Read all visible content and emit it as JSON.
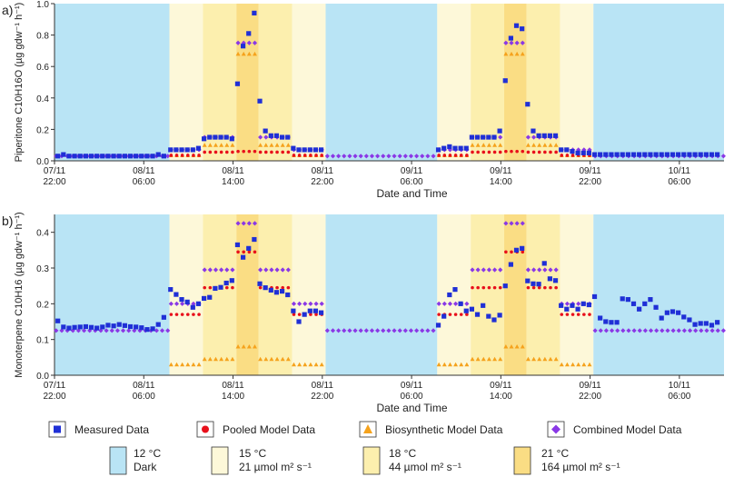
{
  "legend": {
    "measured": "Measured Data",
    "pooled": "Pooled Model Data",
    "biosynthetic": "Biosynthetic Model Data",
    "combined": "Combined Model Data",
    "conditions": [
      {
        "temp": "12 °C",
        "light": "Dark",
        "color": "#b9e4f5"
      },
      {
        "temp": "15 °C",
        "light": "21 µmol m² s⁻¹",
        "color": "#fdf8d9"
      },
      {
        "temp": "18 °C",
        "light": "44 µmol m² s⁻¹",
        "color": "#fcefae"
      },
      {
        "temp": "21 °C",
        "light": "164 µmol m² s⁻¹",
        "color": "#fadd84"
      }
    ]
  },
  "colors": {
    "measured": "#1f2fd6",
    "pooled": "#e8101b",
    "biosynthetic": "#f5a21c",
    "combined": "#8a38e6",
    "axis": "#333333"
  },
  "chart_data": [
    {
      "panel": "a)",
      "type": "scatter",
      "ylabel": "Piperitone  C10H16O  (µg gdw⁻¹ h⁻¹)",
      "xlabel": "Date and Time",
      "xlim": [
        0,
        60
      ],
      "ylim": [
        0,
        1.0
      ],
      "yticks": [
        "0.0",
        "0.2",
        "0.4",
        "0.6",
        "0.8",
        "1.0"
      ],
      "xticks": [
        {
          "x": 0,
          "l1": "07/11",
          "l2": "22:00"
        },
        {
          "x": 8,
          "l1": "08/11",
          "l2": "06:00"
        },
        {
          "x": 16,
          "l1": "08/11",
          "l2": "14:00"
        },
        {
          "x": 24,
          "l1": "08/11",
          "l2": "22:00"
        },
        {
          "x": 32,
          "l1": "09/11",
          "l2": "06:00"
        },
        {
          "x": 40,
          "l1": "09/11",
          "l2": "14:00"
        },
        {
          "x": 48,
          "l1": "09/11",
          "l2": "22:00"
        },
        {
          "x": 56,
          "l1": "10/11",
          "l2": "06:00"
        }
      ],
      "bands": [
        {
          "from": 0,
          "to": 10.3,
          "cond": 0
        },
        {
          "from": 10.3,
          "to": 13.3,
          "cond": 1
        },
        {
          "from": 13.3,
          "to": 16.3,
          "cond": 2
        },
        {
          "from": 16.3,
          "to": 18.3,
          "cond": 3
        },
        {
          "from": 18.3,
          "to": 21.3,
          "cond": 2
        },
        {
          "from": 21.3,
          "to": 24.3,
          "cond": 1
        },
        {
          "from": 24.3,
          "to": 34.3,
          "cond": 0
        },
        {
          "from": 34.3,
          "to": 37.3,
          "cond": 1
        },
        {
          "from": 37.3,
          "to": 40.3,
          "cond": 2
        },
        {
          "from": 40.3,
          "to": 42.3,
          "cond": 3
        },
        {
          "from": 42.3,
          "to": 45.3,
          "cond": 2
        },
        {
          "from": 45.3,
          "to": 48.3,
          "cond": 1
        },
        {
          "from": 48.3,
          "to": 60,
          "cond": 0
        }
      ],
      "measured": {
        "x": [
          0.3,
          0.8,
          1.3,
          1.8,
          2.3,
          2.8,
          3.3,
          3.8,
          4.3,
          4.8,
          5.3,
          5.8,
          6.3,
          6.8,
          7.3,
          7.8,
          8.3,
          8.8,
          9.3,
          9.8,
          10.4,
          10.9,
          11.4,
          11.9,
          12.4,
          12.9,
          13.4,
          13.9,
          14.4,
          14.9,
          15.4,
          15.9,
          16.4,
          16.9,
          17.4,
          17.9,
          18.4,
          18.9,
          19.4,
          19.9,
          20.4,
          20.9,
          21.4,
          21.9,
          22.4,
          22.9,
          23.4,
          23.9,
          34.4,
          34.9,
          35.4,
          35.9,
          36.4,
          36.9,
          37.4,
          37.9,
          38.4,
          38.9,
          39.4,
          39.9,
          40.4,
          40.9,
          41.4,
          41.9,
          42.4,
          42.9,
          43.4,
          43.9,
          44.4,
          44.9,
          45.4,
          45.9,
          46.4,
          46.9,
          47.4,
          47.9,
          48.4,
          48.9,
          49.4,
          49.9,
          50.4,
          50.9,
          51.4,
          51.9,
          52.4,
          52.9,
          53.4,
          53.9,
          54.4,
          54.9,
          55.4,
          55.9,
          56.4,
          56.9,
          57.4,
          57.9,
          58.4,
          58.9,
          59.4
        ],
        "y": [
          0.03,
          0.04,
          0.03,
          0.03,
          0.03,
          0.03,
          0.03,
          0.03,
          0.03,
          0.03,
          0.03,
          0.03,
          0.03,
          0.03,
          0.03,
          0.03,
          0.03,
          0.03,
          0.04,
          0.03,
          0.07,
          0.07,
          0.07,
          0.07,
          0.07,
          0.08,
          0.14,
          0.15,
          0.15,
          0.15,
          0.15,
          0.14,
          0.49,
          0.73,
          0.81,
          0.94,
          0.38,
          0.19,
          0.16,
          0.16,
          0.15,
          0.15,
          0.08,
          0.07,
          0.07,
          0.07,
          0.07,
          0.07,
          0.07,
          0.08,
          0.09,
          0.08,
          0.08,
          0.08,
          0.15,
          0.15,
          0.15,
          0.15,
          0.15,
          0.19,
          0.51,
          0.78,
          0.86,
          0.84,
          0.36,
          0.19,
          0.16,
          0.16,
          0.16,
          0.16,
          0.07,
          0.07,
          0.06,
          0.05,
          0.05,
          0.05,
          0.04,
          0.04,
          0.04,
          0.04,
          0.04,
          0.04,
          0.04,
          0.04,
          0.04,
          0.04,
          0.04,
          0.04,
          0.04,
          0.04,
          0.04,
          0.04,
          0.04,
          0.04,
          0.04,
          0.04,
          0.04,
          0.04,
          0.04
        ]
      },
      "pooled": {
        "segments": [
          {
            "from": 10.3,
            "to": 13.3,
            "y": 0.035
          },
          {
            "from": 13.3,
            "to": 16.3,
            "y": 0.055
          },
          {
            "from": 16.3,
            "to": 18.3,
            "y": 0.06
          },
          {
            "from": 18.3,
            "to": 21.3,
            "y": 0.055
          },
          {
            "from": 21.3,
            "to": 24.3,
            "y": 0.035
          },
          {
            "from": 34.3,
            "to": 37.3,
            "y": 0.035
          },
          {
            "from": 37.3,
            "to": 40.3,
            "y": 0.055
          },
          {
            "from": 40.3,
            "to": 42.3,
            "y": 0.06
          },
          {
            "from": 42.3,
            "to": 45.3,
            "y": 0.055
          },
          {
            "from": 45.3,
            "to": 48.3,
            "y": 0.035
          }
        ]
      },
      "biosynthetic": {
        "segments": [
          {
            "from": 10.3,
            "to": 13.3,
            "y": 0.035
          },
          {
            "from": 13.3,
            "to": 16.3,
            "y": 0.1
          },
          {
            "from": 16.3,
            "to": 18.3,
            "y": 0.68
          },
          {
            "from": 18.3,
            "to": 21.3,
            "y": 0.1
          },
          {
            "from": 21.3,
            "to": 24.3,
            "y": 0.035
          },
          {
            "from": 34.3,
            "to": 37.3,
            "y": 0.035
          },
          {
            "from": 37.3,
            "to": 40.3,
            "y": 0.1
          },
          {
            "from": 40.3,
            "to": 42.3,
            "y": 0.68
          },
          {
            "from": 42.3,
            "to": 45.3,
            "y": 0.1
          },
          {
            "from": 45.3,
            "to": 48.3,
            "y": 0.035
          }
        ]
      },
      "combined": {
        "segments": [
          {
            "from": 0,
            "to": 10.3,
            "y": 0.03
          },
          {
            "from": 10.3,
            "to": 13.3,
            "y": 0.07
          },
          {
            "from": 13.3,
            "to": 16.3,
            "y": 0.15
          },
          {
            "from": 16.3,
            "to": 18.3,
            "y": 0.75
          },
          {
            "from": 18.3,
            "to": 21.3,
            "y": 0.15
          },
          {
            "from": 21.3,
            "to": 24.3,
            "y": 0.07
          },
          {
            "from": 24.3,
            "to": 34.3,
            "y": 0.03
          },
          {
            "from": 34.3,
            "to": 37.3,
            "y": 0.07
          },
          {
            "from": 37.3,
            "to": 40.3,
            "y": 0.15
          },
          {
            "from": 40.3,
            "to": 42.3,
            "y": 0.75
          },
          {
            "from": 42.3,
            "to": 45.3,
            "y": 0.15
          },
          {
            "from": 45.3,
            "to": 48.3,
            "y": 0.07
          },
          {
            "from": 48.3,
            "to": 60,
            "y": 0.03
          }
        ]
      }
    },
    {
      "panel": "b)",
      "type": "scatter",
      "ylabel": "Monoterpene  C10H16  (µg gdw⁻¹ h⁻¹)",
      "xlabel": "Date and Time",
      "xlim": [
        0,
        60
      ],
      "ylim": [
        0,
        0.45
      ],
      "yticks": [
        "0.0",
        "0.1",
        "0.2",
        "0.3",
        "0.4"
      ],
      "xticks": [
        {
          "x": 0,
          "l1": "07/11",
          "l2": "22:00"
        },
        {
          "x": 8,
          "l1": "08/11",
          "l2": "06:00"
        },
        {
          "x": 16,
          "l1": "08/11",
          "l2": "14:00"
        },
        {
          "x": 24,
          "l1": "08/11",
          "l2": "22:00"
        },
        {
          "x": 32,
          "l1": "09/11",
          "l2": "06:00"
        },
        {
          "x": 40,
          "l1": "09/11",
          "l2": "14:00"
        },
        {
          "x": 48,
          "l1": "09/11",
          "l2": "22:00"
        },
        {
          "x": 56,
          "l1": "10/11",
          "l2": "06:00"
        }
      ],
      "bands": [
        {
          "from": 0,
          "to": 10.3,
          "cond": 0
        },
        {
          "from": 10.3,
          "to": 13.3,
          "cond": 1
        },
        {
          "from": 13.3,
          "to": 16.3,
          "cond": 2
        },
        {
          "from": 16.3,
          "to": 18.3,
          "cond": 3
        },
        {
          "from": 18.3,
          "to": 21.3,
          "cond": 2
        },
        {
          "from": 21.3,
          "to": 24.3,
          "cond": 1
        },
        {
          "from": 24.3,
          "to": 34.3,
          "cond": 0
        },
        {
          "from": 34.3,
          "to": 37.3,
          "cond": 1
        },
        {
          "from": 37.3,
          "to": 40.3,
          "cond": 2
        },
        {
          "from": 40.3,
          "to": 42.3,
          "cond": 3
        },
        {
          "from": 42.3,
          "to": 45.3,
          "cond": 2
        },
        {
          "from": 45.3,
          "to": 48.3,
          "cond": 1
        },
        {
          "from": 48.3,
          "to": 60,
          "cond": 0
        }
      ],
      "measured": {
        "x": [
          0.3,
          0.8,
          1.3,
          1.8,
          2.3,
          2.8,
          3.3,
          3.8,
          4.3,
          4.8,
          5.3,
          5.8,
          6.3,
          6.8,
          7.3,
          7.8,
          8.3,
          8.8,
          9.3,
          9.8,
          10.4,
          10.9,
          11.4,
          11.9,
          12.4,
          12.9,
          13.4,
          13.9,
          14.4,
          14.9,
          15.4,
          15.9,
          16.4,
          16.9,
          17.4,
          17.9,
          18.4,
          18.9,
          19.4,
          19.9,
          20.4,
          20.9,
          21.4,
          21.9,
          22.4,
          22.9,
          23.4,
          23.9,
          34.4,
          34.9,
          35.4,
          35.9,
          36.4,
          36.9,
          37.4,
          37.9,
          38.4,
          38.9,
          39.4,
          39.9,
          40.4,
          40.9,
          41.4,
          41.9,
          42.4,
          42.9,
          43.4,
          43.9,
          44.4,
          44.9,
          45.4,
          45.9,
          46.4,
          46.9,
          47.4,
          47.9,
          48.4,
          48.9,
          49.4,
          49.9,
          50.4,
          50.9,
          51.4,
          51.9,
          52.4,
          52.9,
          53.4,
          53.9,
          54.4,
          54.9,
          55.4,
          55.9,
          56.4,
          56.9,
          57.4,
          57.9,
          58.4,
          58.9,
          59.4
        ],
        "y": [
          0.152,
          0.135,
          0.132,
          0.134,
          0.135,
          0.136,
          0.134,
          0.132,
          0.135,
          0.14,
          0.138,
          0.142,
          0.139,
          0.136,
          0.135,
          0.133,
          0.128,
          0.13,
          0.142,
          0.162,
          0.24,
          0.226,
          0.212,
          0.205,
          0.19,
          0.2,
          0.215,
          0.218,
          0.243,
          0.246,
          0.258,
          0.265,
          0.365,
          0.33,
          0.355,
          0.38,
          0.256,
          0.245,
          0.238,
          0.232,
          0.235,
          0.225,
          0.18,
          0.15,
          0.17,
          0.18,
          0.18,
          0.175,
          0.14,
          0.165,
          0.225,
          0.24,
          0.2,
          0.18,
          0.185,
          0.17,
          0.195,
          0.165,
          0.155,
          0.168,
          0.25,
          0.31,
          0.35,
          0.355,
          0.264,
          0.256,
          0.255,
          0.313,
          0.27,
          0.265,
          0.195,
          0.185,
          0.195,
          0.185,
          0.2,
          0.197,
          0.22,
          0.16,
          0.15,
          0.148,
          0.148,
          0.214,
          0.212,
          0.2,
          0.185,
          0.2,
          0.212,
          0.19,
          0.16,
          0.175,
          0.178,
          0.175,
          0.163,
          0.155,
          0.142,
          0.145,
          0.145,
          0.14,
          0.148
        ]
      },
      "pooled": {
        "segments": [
          {
            "from": 10.3,
            "to": 13.3,
            "y": 0.17
          },
          {
            "from": 13.3,
            "to": 16.3,
            "y": 0.245
          },
          {
            "from": 16.3,
            "to": 18.3,
            "y": 0.345
          },
          {
            "from": 18.3,
            "to": 21.3,
            "y": 0.245
          },
          {
            "from": 21.3,
            "to": 24.3,
            "y": 0.17
          },
          {
            "from": 34.3,
            "to": 37.3,
            "y": 0.17
          },
          {
            "from": 37.3,
            "to": 40.3,
            "y": 0.245
          },
          {
            "from": 40.3,
            "to": 42.3,
            "y": 0.345
          },
          {
            "from": 42.3,
            "to": 45.3,
            "y": 0.245
          },
          {
            "from": 45.3,
            "to": 48.3,
            "y": 0.17
          }
        ]
      },
      "biosynthetic": {
        "segments": [
          {
            "from": 10.3,
            "to": 13.3,
            "y": 0.03
          },
          {
            "from": 13.3,
            "to": 16.3,
            "y": 0.045
          },
          {
            "from": 16.3,
            "to": 18.3,
            "y": 0.08
          },
          {
            "from": 18.3,
            "to": 21.3,
            "y": 0.045
          },
          {
            "from": 21.3,
            "to": 24.3,
            "y": 0.03
          },
          {
            "from": 34.3,
            "to": 37.3,
            "y": 0.03
          },
          {
            "from": 37.3,
            "to": 40.3,
            "y": 0.045
          },
          {
            "from": 40.3,
            "to": 42.3,
            "y": 0.08
          },
          {
            "from": 42.3,
            "to": 45.3,
            "y": 0.045
          },
          {
            "from": 45.3,
            "to": 48.3,
            "y": 0.03
          }
        ]
      },
      "combined": {
        "segments": [
          {
            "from": 0,
            "to": 10.3,
            "y": 0.125
          },
          {
            "from": 10.3,
            "to": 13.3,
            "y": 0.2
          },
          {
            "from": 13.3,
            "to": 16.3,
            "y": 0.295
          },
          {
            "from": 16.3,
            "to": 18.3,
            "y": 0.425
          },
          {
            "from": 18.3,
            "to": 21.3,
            "y": 0.295
          },
          {
            "from": 21.3,
            "to": 24.3,
            "y": 0.2
          },
          {
            "from": 24.3,
            "to": 34.3,
            "y": 0.125
          },
          {
            "from": 34.3,
            "to": 37.3,
            "y": 0.2
          },
          {
            "from": 37.3,
            "to": 40.3,
            "y": 0.295
          },
          {
            "from": 40.3,
            "to": 42.3,
            "y": 0.425
          },
          {
            "from": 42.3,
            "to": 45.3,
            "y": 0.295
          },
          {
            "from": 45.3,
            "to": 48.3,
            "y": 0.2
          },
          {
            "from": 48.3,
            "to": 60,
            "y": 0.125
          }
        ]
      }
    }
  ]
}
